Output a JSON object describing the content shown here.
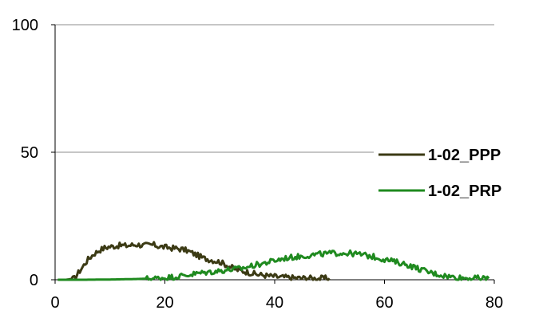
{
  "chart_data": {
    "type": "line",
    "title": "",
    "xlabel": "",
    "ylabel": "",
    "xlim": [
      0,
      80
    ],
    "ylim": [
      0,
      100
    ],
    "x_ticks": [
      "0",
      "20",
      "40",
      "60",
      "80"
    ],
    "y_ticks": [
      "0",
      "50",
      "100"
    ],
    "grid": "horizontal",
    "legend_position": "right",
    "series": [
      {
        "name": "1-02_PPP",
        "color": "#3b3a14",
        "points": [
          [
            0.5,
            0
          ],
          [
            2,
            0
          ],
          [
            3.5,
            0.5
          ],
          [
            4,
            2
          ],
          [
            5,
            5
          ],
          [
            6,
            8
          ],
          [
            7,
            10
          ],
          [
            8,
            11.5
          ],
          [
            9,
            12.5
          ],
          [
            10,
            13
          ],
          [
            11,
            13.2
          ],
          [
            12,
            13.5
          ],
          [
            13,
            13.3
          ],
          [
            14,
            13.6
          ],
          [
            15,
            13.8
          ],
          [
            16,
            13.5
          ],
          [
            17,
            13.6
          ],
          [
            18,
            13.7
          ],
          [
            19,
            13
          ],
          [
            20,
            12.8
          ],
          [
            21,
            12.5
          ],
          [
            22,
            12.3
          ],
          [
            23,
            12
          ],
          [
            24,
            11.5
          ],
          [
            25,
            10.5
          ],
          [
            26,
            9.5
          ],
          [
            27,
            8.5
          ],
          [
            28,
            8
          ],
          [
            29,
            7.5
          ],
          [
            30,
            7
          ],
          [
            31,
            6
          ],
          [
            32,
            5
          ],
          [
            33,
            4
          ],
          [
            34,
            3.5
          ],
          [
            35,
            3
          ],
          [
            36,
            2.5
          ],
          [
            37,
            2
          ],
          [
            38,
            1.8
          ],
          [
            39,
            1.5
          ],
          [
            40,
            1.3
          ],
          [
            41,
            1
          ],
          [
            42,
            1
          ],
          [
            43,
            0.8
          ],
          [
            44,
            0.7
          ],
          [
            45,
            0.6
          ],
          [
            46,
            0.8
          ],
          [
            47,
            0.5
          ],
          [
            48,
            0.5
          ],
          [
            49,
            0.6
          ],
          [
            50,
            0.5
          ]
        ]
      },
      {
        "name": "1-02_PRP",
        "color": "#1f8a1f",
        "points": [
          [
            0.5,
            0
          ],
          [
            5,
            0
          ],
          [
            10,
            0.1
          ],
          [
            15,
            0.3
          ],
          [
            18,
            0.5
          ],
          [
            20,
            0.8
          ],
          [
            22,
            1.2
          ],
          [
            24,
            1.8
          ],
          [
            26,
            2.5
          ],
          [
            28,
            3
          ],
          [
            30,
            3.5
          ],
          [
            32,
            4
          ],
          [
            34,
            4.5
          ],
          [
            36,
            5.5
          ],
          [
            38,
            6.5
          ],
          [
            40,
            7.5
          ],
          [
            42,
            8.5
          ],
          [
            44,
            9
          ],
          [
            46,
            9.5
          ],
          [
            48,
            10
          ],
          [
            50,
            10.3
          ],
          [
            52,
            10.5
          ],
          [
            54,
            10.3
          ],
          [
            56,
            9.8
          ],
          [
            58,
            9
          ],
          [
            60,
            8
          ],
          [
            62,
            7
          ],
          [
            64,
            6
          ],
          [
            66,
            4.5
          ],
          [
            68,
            3
          ],
          [
            70,
            2
          ],
          [
            72,
            1.2
          ],
          [
            74,
            0.8
          ],
          [
            76,
            0.6
          ],
          [
            78,
            0.5
          ],
          [
            79,
            0.5
          ]
        ]
      }
    ]
  }
}
